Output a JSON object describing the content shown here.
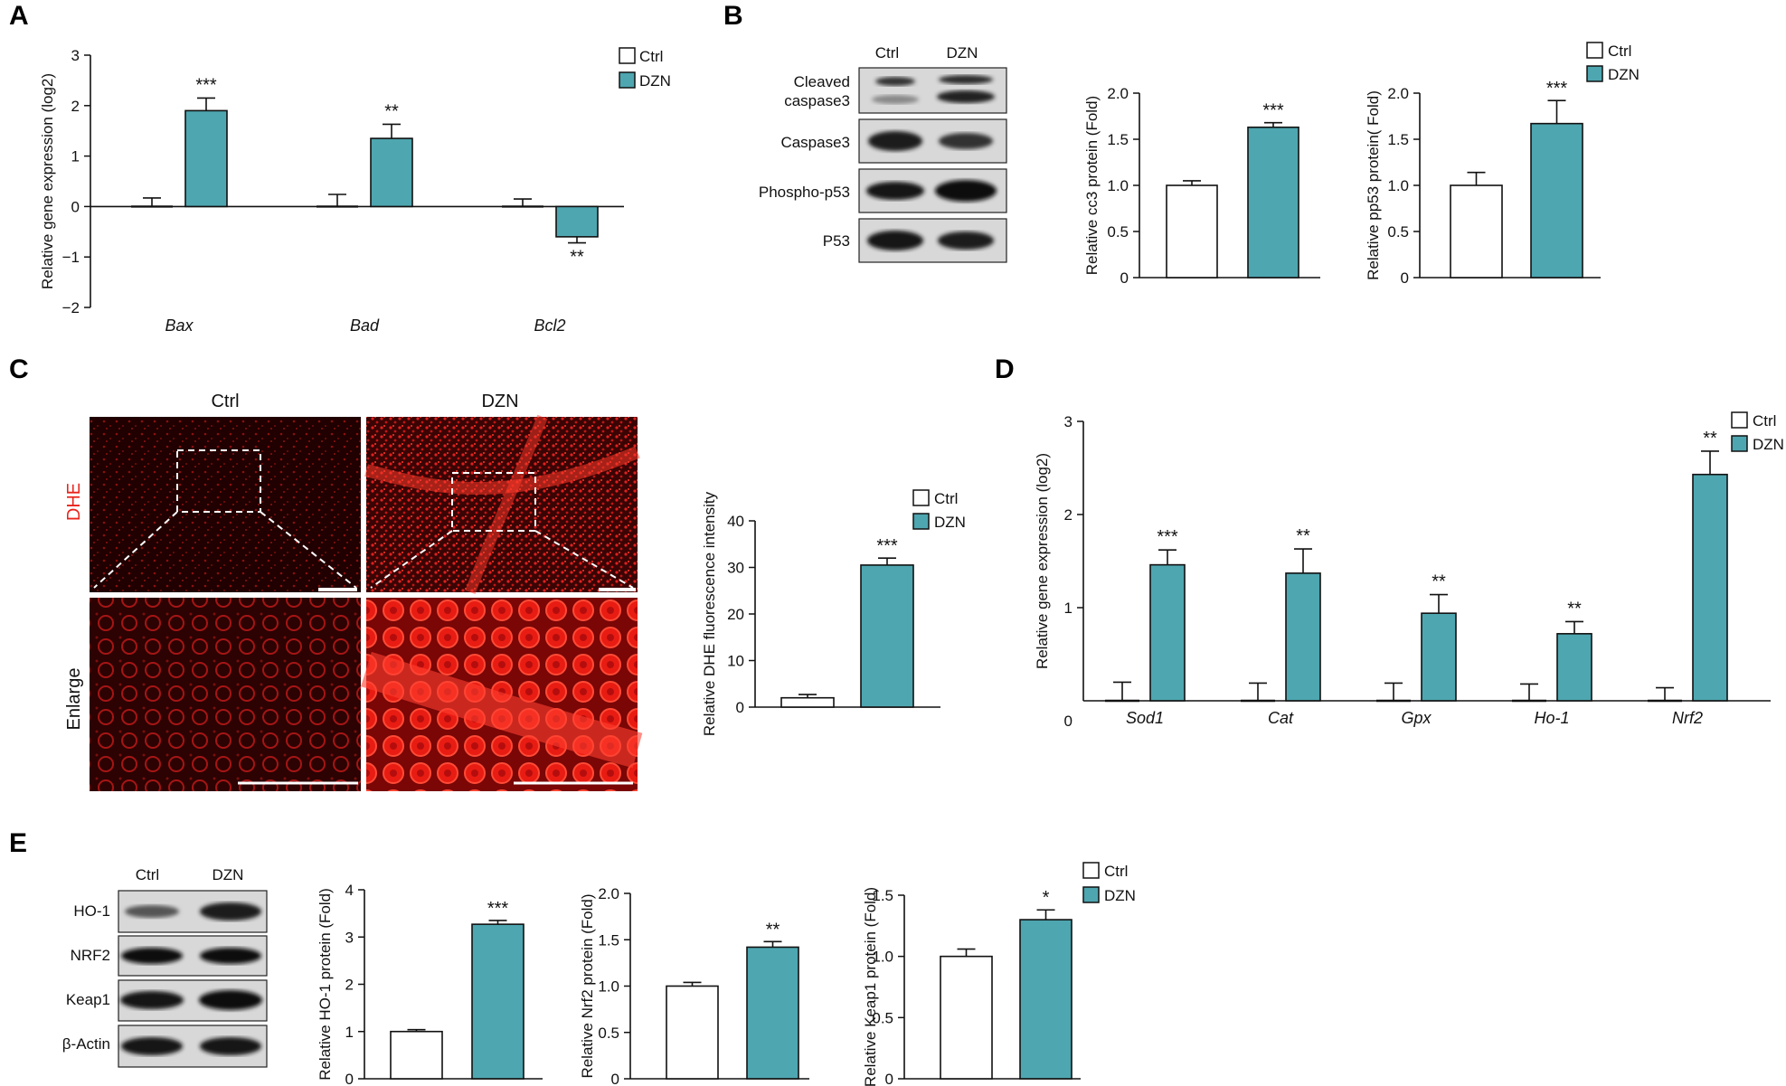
{
  "colors": {
    "ctrl": "#ffffff",
    "dzn": "#4ea6b0",
    "stroke": "#111111",
    "dhe_label": "#e8231b"
  },
  "panel_labels": {
    "a": "A",
    "b": "B",
    "c": "C",
    "d": "D",
    "e": "E"
  },
  "legend": {
    "ctrl": "Ctrl",
    "dzn": "DZN"
  },
  "blot_b": {
    "col_ctrl": "Ctrl",
    "col_dzn": "DZN",
    "rows": [
      "Cleaved\ncaspase3",
      "Caspase3",
      "Phospho-p53",
      "P53"
    ]
  },
  "blot_e": {
    "col_ctrl": "Ctrl",
    "col_dzn": "DZN",
    "rows": [
      "HO-1",
      "NRF2",
      "Keap1",
      "β-Actin"
    ]
  },
  "images_c": {
    "col_ctrl": "Ctrl",
    "col_dzn": "DZN",
    "row_dhe": "DHE",
    "row_enlarge": "Enlarge"
  },
  "chart_data": [
    {
      "id": "A",
      "type": "bar",
      "ylabel": "Relative gene expression (log2)",
      "categories": [
        "Bax",
        "Bad",
        "Bcl2"
      ],
      "ylim": [
        -2,
        3
      ],
      "ticks": [
        -2,
        -1,
        0,
        1,
        2,
        3
      ],
      "tick_labels": [
        "−2",
        "−1",
        "0",
        "1",
        "2",
        "3"
      ],
      "legend": "top-right",
      "series": [
        {
          "name": "Ctrl",
          "values": [
            0,
            0,
            0
          ],
          "errors": [
            0.17,
            0.24,
            0.15
          ]
        },
        {
          "name": "DZN",
          "values": [
            1.9,
            1.35,
            -0.6
          ],
          "errors": [
            0.25,
            0.28,
            0.12
          ]
        }
      ],
      "annotations": [
        "***",
        "**",
        "**"
      ]
    },
    {
      "id": "B1",
      "type": "bar",
      "ylabel": "Relative cc3 protein (Fold)",
      "categories": [
        "Ctrl",
        "DZN"
      ],
      "ylim": [
        0,
        2.0
      ],
      "ticks": [
        0,
        0.5,
        1.0,
        1.5,
        2.0
      ],
      "tick_labels": [
        "0",
        "0.5",
        "1.0",
        "1.5",
        "2.0"
      ],
      "series": [
        {
          "name": "",
          "values": [
            1.0,
            1.63
          ],
          "errors": [
            0.05,
            0.05
          ]
        }
      ],
      "annotations": [
        "",
        "***"
      ]
    },
    {
      "id": "B2",
      "type": "bar",
      "ylabel": "Relative pp53 protein( Fold)",
      "categories": [
        "Ctrl",
        "DZN"
      ],
      "ylim": [
        0,
        2.0
      ],
      "ticks": [
        0,
        0.5,
        1.0,
        1.5,
        2.0
      ],
      "tick_labels": [
        "0",
        "0.5",
        "1.0",
        "1.5",
        "2.0"
      ],
      "legend": "top-right",
      "series": [
        {
          "name": "",
          "values": [
            1.0,
            1.67
          ],
          "errors": [
            0.14,
            0.25
          ]
        }
      ],
      "annotations": [
        "",
        "***"
      ]
    },
    {
      "id": "C",
      "type": "bar",
      "ylabel": "Relative DHE fluorescence intensity",
      "categories": [
        "Ctrl",
        "DZN"
      ],
      "ylim": [
        0,
        40
      ],
      "ticks": [
        0,
        10,
        20,
        30,
        40
      ],
      "tick_labels": [
        "0",
        "10",
        "20",
        "30",
        "40"
      ],
      "legend": "top-right",
      "series": [
        {
          "name": "",
          "values": [
            2,
            30.5
          ],
          "errors": [
            0.7,
            1.5
          ]
        }
      ],
      "annotations": [
        "",
        "***"
      ]
    },
    {
      "id": "D",
      "type": "bar",
      "ylabel": "Relative gene expression (log2)",
      "categories": [
        "Sod1",
        "Cat",
        "Gpx",
        "Ho-1",
        "Nrf2"
      ],
      "ylim": [
        0,
        3
      ],
      "ticks": [
        1,
        2,
        3
      ],
      "tick_labels": [
        "1",
        "2",
        "3"
      ],
      "origin_label": "0",
      "legend": "top-right",
      "series": [
        {
          "name": "Ctrl",
          "values": [
            0,
            0,
            0,
            0,
            0
          ],
          "errors": [
            0.2,
            0.19,
            0.19,
            0.18,
            0.14
          ]
        },
        {
          "name": "DZN",
          "values": [
            1.46,
            1.37,
            0.94,
            0.72,
            2.43
          ],
          "errors": [
            0.16,
            0.26,
            0.2,
            0.13,
            0.25
          ]
        }
      ],
      "annotations": [
        "***",
        "**",
        "**",
        "**",
        "**"
      ]
    },
    {
      "id": "E1",
      "type": "bar",
      "ylabel": "Relative HO-1 protein (Fold)",
      "categories": [
        "Ctrl",
        "DZN"
      ],
      "ylim": [
        0,
        4
      ],
      "ticks": [
        0,
        1,
        2,
        3,
        4
      ],
      "tick_labels": [
        "0",
        "1",
        "2",
        "3",
        "4"
      ],
      "series": [
        {
          "name": "",
          "values": [
            1.0,
            3.27
          ],
          "errors": [
            0.04,
            0.08
          ]
        }
      ],
      "annotations": [
        "",
        "***"
      ]
    },
    {
      "id": "E2",
      "type": "bar",
      "ylabel": "Relative Nrf2 protein (Fold)",
      "categories": [
        "Ctrl",
        "DZN"
      ],
      "ylim": [
        0,
        2.0
      ],
      "ticks": [
        0,
        0.5,
        1.0,
        1.5,
        2.0
      ],
      "tick_labels": [
        "0",
        "0.5",
        "1.0",
        "1.5",
        "2.0"
      ],
      "series": [
        {
          "name": "",
          "values": [
            1.0,
            1.42
          ],
          "errors": [
            0.04,
            0.06
          ]
        }
      ],
      "annotations": [
        "",
        "**"
      ]
    },
    {
      "id": "E3",
      "type": "bar",
      "ylabel": "Relative Keap1 protein (Fold)",
      "categories": [
        "Ctrl",
        "DZN"
      ],
      "ylim": [
        0,
        1.5
      ],
      "ticks": [
        0,
        0.5,
        1.0,
        1.5
      ],
      "tick_labels": [
        "0",
        "0.5",
        "1.0",
        "1.5"
      ],
      "legend": "top-right",
      "series": [
        {
          "name": "",
          "values": [
            1.0,
            1.3
          ],
          "errors": [
            0.06,
            0.08
          ]
        }
      ],
      "annotations": [
        "",
        "*"
      ]
    }
  ]
}
